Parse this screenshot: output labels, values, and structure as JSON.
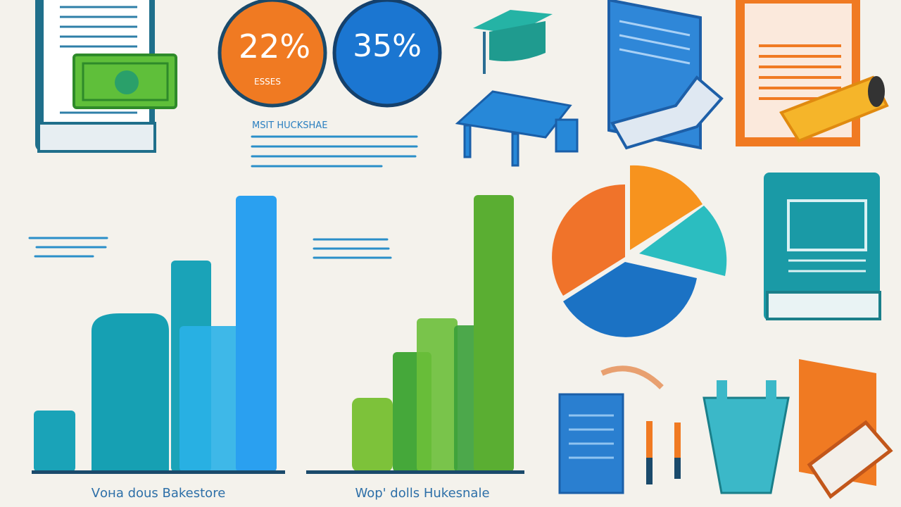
{
  "stats": [
    {
      "value": "22%",
      "label": "ESSES"
    },
    {
      "value": "35%"
    }
  ],
  "heading": "MSIT HUCKSHAE",
  "captions": [
    "Vонa dous Bakestore",
    "Wop' dolls Hukesnale"
  ]
}
